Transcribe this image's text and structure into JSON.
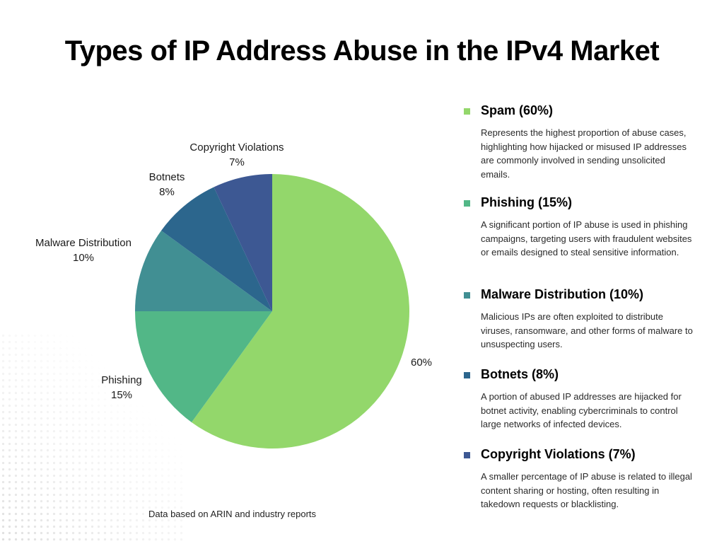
{
  "title": "Types of IP Address Abuse in the IPv4 Market",
  "footnote": "Data based on ARIN and industry reports",
  "pie_labels": {
    "spam": {
      "pct": "60%"
    },
    "phishing": {
      "name": "Phishing",
      "pct": "15%"
    },
    "malware": {
      "name": "Malware Distribution",
      "pct": "10%"
    },
    "botnets": {
      "name": "Botnets",
      "pct": "8%"
    },
    "copyright": {
      "name": "Copyright Violations",
      "pct": "7%"
    }
  },
  "legend": [
    {
      "title": "Spam (60%)",
      "color": "#93D76B",
      "description": "Represents the highest proportion of abuse cases, highlighting how hijacked or misused IP addresses are commonly involved in sending unsolicited emails."
    },
    {
      "title": "Phishing (15%)",
      "color": "#52B787",
      "description": "A significant portion of IP abuse is used in phishing campaigns, targeting users with fraudulent websites or emails designed to steal sensitive information."
    },
    {
      "title": "Malware Distribution (10%)",
      "color": "#418F93",
      "description": "Malicious IPs are often exploited to distribute viruses, ransomware, and other forms of malware to unsuspecting users."
    },
    {
      "title": "Botnets (8%)",
      "color": "#2C668D",
      "description": "A portion of abused IP addresses are hijacked for botnet activity, enabling cybercriminals to control large networks of infected devices."
    },
    {
      "title": "Copyright Violations (7%)",
      "color": "#3D5893",
      "description": "A smaller percentage of IP abuse is related to illegal content sharing or hosting, often resulting in takedown requests or blacklisting."
    }
  ],
  "chart_data": {
    "type": "pie",
    "title": "Types of IP Address Abuse in the IPv4 Market",
    "categories": [
      "Spam",
      "Phishing",
      "Malware Distribution",
      "Botnets",
      "Copyright Violations"
    ],
    "values": [
      60,
      15,
      10,
      8,
      7
    ],
    "unit": "%",
    "colors": [
      "#93D76B",
      "#52B787",
      "#418F93",
      "#2C668D",
      "#3D5893"
    ],
    "start_angle": "12 o'clock",
    "direction": "clockwise",
    "data_labels": [
      "60%",
      "Phishing 15%",
      "Malware Distribution 10%",
      "Botnets 8%",
      "Copyright Violations 7%"
    ],
    "legend_position": "right",
    "source_note": "Data based on ARIN and industry reports"
  }
}
